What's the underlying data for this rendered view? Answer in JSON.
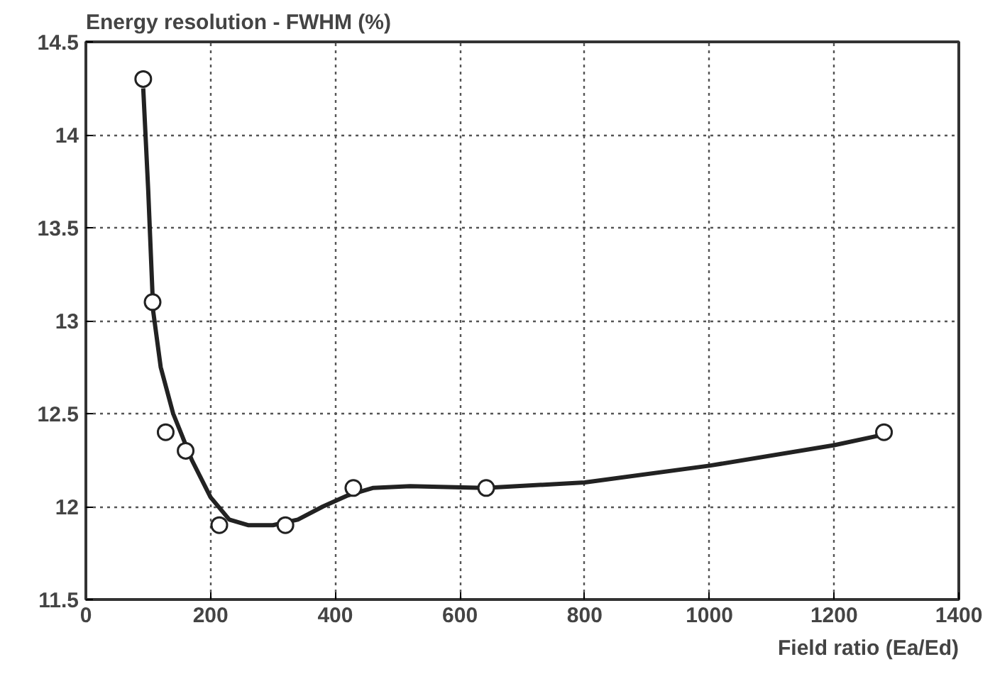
{
  "chart_data": {
    "type": "line",
    "ylabel": "Energy resolution - FWHM (%)",
    "xlabel": "Field ratio (Ea/Ed)",
    "xlim": [
      0,
      1400
    ],
    "ylim": [
      11.5,
      14.5
    ],
    "xticks": [
      0,
      200,
      400,
      600,
      800,
      1000,
      1200,
      1400
    ],
    "yticks": [
      11.5,
      12,
      12.5,
      13,
      13.5,
      14,
      14.5
    ],
    "grid": true,
    "series": [
      {
        "color": "#222222",
        "line_style": "solid",
        "x": [
          92,
          100,
          108,
          120,
          140,
          170,
          200,
          230,
          260,
          300,
          340,
          380,
          420,
          460,
          520,
          640,
          800,
          1000,
          1200,
          1270
        ],
        "values": [
          14.25,
          13.7,
          13.05,
          12.75,
          12.5,
          12.25,
          12.05,
          11.93,
          11.9,
          11.9,
          11.93,
          12.0,
          12.06,
          12.1,
          12.11,
          12.1,
          12.13,
          12.22,
          12.33,
          12.38
        ]
      },
      {
        "type": "scatter",
        "marker": "circle",
        "color": "#222222",
        "x": [
          92,
          107,
          128,
          160,
          214,
          320,
          429,
          642,
          1280
        ],
        "values": [
          14.3,
          13.1,
          12.4,
          12.3,
          11.9,
          11.9,
          12.1,
          12.1,
          12.4
        ]
      }
    ]
  }
}
